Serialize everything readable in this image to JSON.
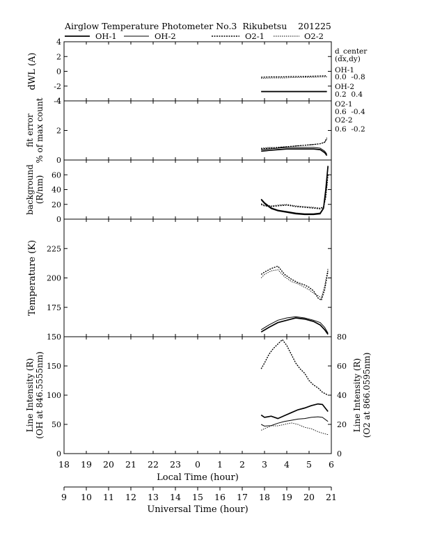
{
  "title": "Airglow Temperature Photometer No.3  Rikubetsu    201225",
  "legend": [
    "OH-1",
    "OH-2",
    "O2-1",
    "O2-2"
  ],
  "annotation": {
    "header": [
      "d_center",
      "(dx,dy)"
    ],
    "entries": [
      {
        "name": "OH-1",
        "value": "0.0  -0.8"
      },
      {
        "name": "OH-2",
        "value": "0.2  0.4"
      },
      {
        "name": "O2-1",
        "value": "0.6  -0.4"
      },
      {
        "name": "O2-2",
        "value": "0.6  -0.2"
      }
    ]
  },
  "chart_data": {
    "type": "line",
    "x_local": {
      "label": "Local Time (hour)",
      "ticks": [
        "18",
        "19",
        "20",
        "21",
        "22",
        "23",
        "0",
        "1",
        "2",
        "3",
        "4",
        "5",
        "6"
      ]
    },
    "x_ut": {
      "label": "Universal Time (hour)",
      "ticks": [
        "9",
        "10",
        "11",
        "12",
        "13",
        "14",
        "15",
        "16",
        "17",
        "18",
        "19",
        "20",
        "21"
      ]
    },
    "panels": [
      {
        "id": "dwl",
        "ylabel": [
          "dWL (A)"
        ],
        "ylim": [
          -4,
          4
        ],
        "yticks": [
          "4",
          "2",
          "0",
          "-2",
          "-4"
        ],
        "series": [
          {
            "name": "OH-1",
            "x": [
              2.85,
              5.8
            ],
            "y": [
              -2.75,
              -2.75
            ]
          },
          {
            "name": "OH-2",
            "x": [
              2.85,
              5.8
            ],
            "y": [
              -2.7,
              -2.7
            ]
          },
          {
            "name": "O2-1",
            "x": [
              2.85,
              3.3,
              3.8,
              4.3,
              4.8,
              5.3,
              5.8
            ],
            "y": [
              -0.8,
              -0.75,
              -0.75,
              -0.7,
              -0.7,
              -0.65,
              -0.6
            ]
          },
          {
            "name": "O2-2",
            "x": [
              2.85,
              3.3,
              3.8,
              4.3,
              4.8,
              5.3,
              5.8
            ],
            "y": [
              -0.95,
              -0.9,
              -0.9,
              -0.85,
              -0.8,
              -0.8,
              -0.75
            ]
          }
        ]
      },
      {
        "id": "fit",
        "ylabel": [
          "fit error",
          "% of max count"
        ],
        "ylim": [
          0,
          4
        ],
        "yticks": [
          "4",
          "2",
          "0"
        ],
        "series": [
          {
            "name": "OH-1",
            "x": [
              2.85,
              3.2,
              3.6,
              4.0,
              4.4,
              4.8,
              5.2,
              5.5,
              5.7,
              5.8
            ],
            "y": [
              0.6,
              0.65,
              0.7,
              0.75,
              0.75,
              0.75,
              0.75,
              0.7,
              0.5,
              0.3
            ]
          },
          {
            "name": "OH-2",
            "x": [
              2.85,
              3.2,
              3.6,
              4.0,
              4.4,
              4.8,
              5.2,
              5.5,
              5.7,
              5.8
            ],
            "y": [
              0.7,
              0.75,
              0.8,
              0.85,
              0.85,
              0.85,
              0.85,
              0.8,
              0.6,
              0.4
            ]
          },
          {
            "name": "O2-1",
            "x": [
              2.85,
              3.2,
              3.6,
              4.0,
              4.4,
              4.8,
              5.2,
              5.5,
              5.7,
              5.8
            ],
            "y": [
              0.75,
              0.8,
              0.85,
              0.9,
              0.95,
              1.0,
              1.05,
              1.1,
              1.2,
              1.5
            ]
          },
          {
            "name": "O2-2",
            "x": [
              2.85,
              3.2,
              3.6,
              4.0,
              4.4,
              4.8,
              5.2,
              5.5,
              5.7,
              5.8
            ],
            "y": [
              0.8,
              0.85,
              0.85,
              0.9,
              0.95,
              1.0,
              1.05,
              1.1,
              1.2,
              1.4
            ]
          }
        ]
      },
      {
        "id": "bg",
        "ylabel": [
          "background",
          "(R/nm)"
        ],
        "ylim": [
          0,
          80
        ],
        "yticks": [
          "60",
          "40",
          "20",
          "0"
        ],
        "series": [
          {
            "name": "OH-1",
            "x": [
              2.85,
              3.0,
              3.3,
              3.6,
              4.0,
              4.4,
              4.8,
              5.2,
              5.5,
              5.65,
              5.75,
              5.85
            ],
            "y": [
              27,
              22,
              15,
              12,
              10,
              8,
              7,
              7,
              8,
              15,
              40,
              72
            ]
          },
          {
            "name": "OH-2",
            "x": [
              2.85,
              3.0,
              3.3,
              3.6,
              4.0,
              4.4,
              4.8,
              5.2,
              5.5,
              5.65,
              5.75,
              5.85
            ],
            "y": [
              26,
              21,
              14,
              11,
              9,
              7,
              6,
              6,
              7,
              14,
              38,
              70
            ]
          },
          {
            "name": "O2-1",
            "x": [
              2.85,
              3.0,
              3.3,
              3.6,
              4.0,
              4.4,
              4.8,
              5.2,
              5.5,
              5.65,
              5.75,
              5.85
            ],
            "y": [
              20,
              18,
              17,
              18,
              19,
              17,
              16,
              15,
              14,
              16,
              30,
              60
            ]
          },
          {
            "name": "O2-2",
            "x": [
              2.85,
              3.0,
              3.3,
              3.6,
              4.0,
              4.4,
              4.8,
              5.2,
              5.5,
              5.65,
              5.75,
              5.85
            ],
            "y": [
              21,
              19,
              18,
              19,
              20,
              18,
              17,
              16,
              15,
              17,
              31,
              61
            ]
          }
        ]
      },
      {
        "id": "temp",
        "ylabel": [
          "Temperature (K)"
        ],
        "ylim": [
          150,
          250
        ],
        "yticks": [
          "225",
          "200",
          "175",
          "150"
        ],
        "series": [
          {
            "name": "OH-1",
            "x": [
              2.85,
              3.2,
              3.6,
              4.0,
              4.4,
              4.8,
              5.2,
              5.5,
              5.7,
              5.85
            ],
            "y": [
              154,
              158,
              162,
              164,
              166,
              165,
              163,
              160,
              156,
              152
            ]
          },
          {
            "name": "OH-2",
            "x": [
              2.85,
              3.2,
              3.6,
              4.0,
              4.4,
              4.8,
              5.2,
              5.5,
              5.7,
              5.85
            ],
            "y": [
              156,
              160,
              164,
              166,
              167,
              166,
              164,
              162,
              158,
              153
            ]
          },
          {
            "name": "O2-1",
            "x": [
              2.85,
              3.0,
              3.3,
              3.6,
              3.9,
              4.2,
              4.5,
              4.8,
              5.0,
              5.2,
              5.4,
              5.55,
              5.7,
              5.85
            ],
            "y": [
              203,
              205,
              208,
              210,
              203,
              199,
              196,
              194,
              192,
              189,
              183,
              181,
              190,
              206
            ]
          },
          {
            "name": "O2-2",
            "x": [
              2.85,
              3.0,
              3.3,
              3.6,
              3.9,
              4.2,
              4.5,
              4.8,
              5.0,
              5.2,
              5.4,
              5.55,
              5.7,
              5.85
            ],
            "y": [
              200,
              203,
              206,
              207,
              201,
              197,
              195,
              192,
              190,
              187,
              185,
              183,
              193,
              208
            ]
          }
        ]
      },
      {
        "id": "int",
        "ylabel": [
          "Line Intensity (R)",
          "(OH at 846.5555nm)"
        ],
        "ylabel_right": [
          "Line Intensity (R)",
          "(O2 at 866.0595nm)"
        ],
        "ylim": [
          0,
          200
        ],
        "yticks": [
          "150",
          "100",
          "50",
          "0"
        ],
        "ylim_right": [
          0,
          80
        ],
        "yticks_right": [
          "80",
          "60",
          "40",
          "20",
          "0"
        ],
        "series": [
          {
            "name": "OH-1",
            "axis": "left",
            "x": [
              2.85,
              3.0,
              3.3,
              3.6,
              3.9,
              4.2,
              4.5,
              4.8,
              5.1,
              5.4,
              5.6,
              5.85
            ],
            "y": [
              66,
              62,
              64,
              60,
              65,
              70,
              75,
              78,
              82,
              85,
              84,
              72
            ]
          },
          {
            "name": "OH-2",
            "axis": "left",
            "x": [
              2.85,
              3.0,
              3.3,
              3.6,
              3.9,
              4.2,
              4.5,
              4.8,
              5.1,
              5.4,
              5.6,
              5.85
            ],
            "y": [
              50,
              47,
              48,
              52,
              55,
              57,
              59,
              60,
              62,
              63,
              62,
              55
            ]
          },
          {
            "name": "O2-1",
            "axis": "right",
            "x": [
              2.85,
              3.0,
              3.2,
              3.4,
              3.6,
              3.8,
              4.0,
              4.2,
              4.4,
              4.6,
              4.8,
              5.0,
              5.2,
              5.4,
              5.6,
              5.85
            ],
            "y": [
              58,
              62,
              68,
              72,
              75,
              78,
              74,
              68,
              62,
              58,
              55,
              50,
              47,
              45,
              42,
              40
            ]
          },
          {
            "name": "O2-2",
            "axis": "right",
            "x": [
              2.85,
              3.0,
              3.3,
              3.6,
              3.9,
              4.2,
              4.5,
              4.8,
              5.1,
              5.4,
              5.6,
              5.85
            ],
            "y": [
              16,
              17,
              19,
              19,
              20,
              21,
              20,
              18,
              17,
              15,
              14,
              13
            ]
          }
        ]
      }
    ]
  }
}
